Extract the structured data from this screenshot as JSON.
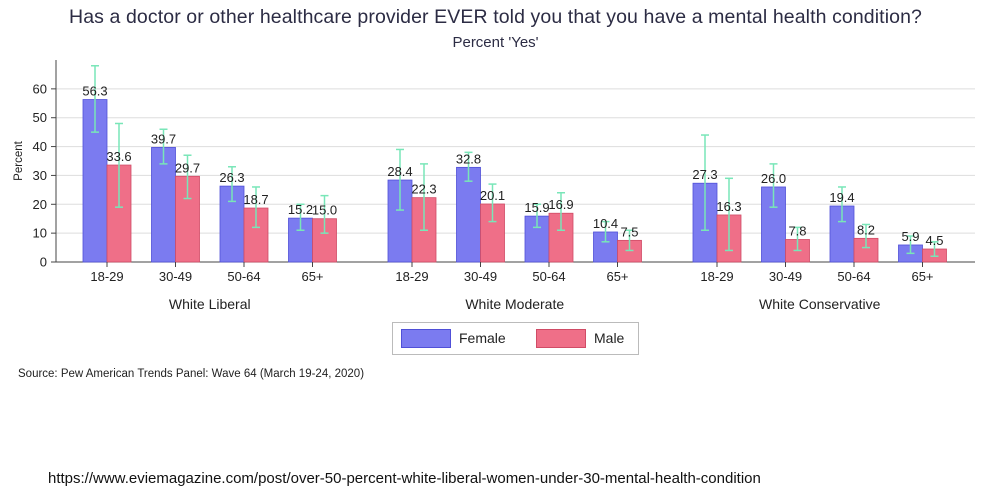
{
  "title": "Has a doctor or other healthcare provider EVER told you that you have a mental health condition?",
  "subtitle": "Percent 'Yes'",
  "source": "Source: Pew American Trends Panel: Wave 64 (March 19-24, 2020)",
  "url": "https://www.eviemagazine.com/post/over-50-percent-white-liberal-women-under-30-mental-health-condition",
  "colors": {
    "female": "#7b7bf0",
    "female_edge": "#5050d8",
    "male": "#ef6f88",
    "male_edge": "#d04c66",
    "error_bar": "#79e6b8",
    "grid": "#dddddd"
  },
  "legend": {
    "female": "Female",
    "male": "Male"
  },
  "chart_data": {
    "type": "bar",
    "ylabel": "Percent",
    "xlabel": "",
    "ylim": [
      0,
      70
    ],
    "yticks": [
      0,
      10,
      20,
      30,
      40,
      50,
      60
    ],
    "grid": true,
    "legend_position": "bottom",
    "groups": [
      {
        "name": "White Liberal",
        "categories": [
          "18-29",
          "30-49",
          "50-64",
          "65+"
        ],
        "female": [
          56.3,
          39.7,
          26.3,
          15.2
        ],
        "female_ci": [
          [
            45,
            68
          ],
          [
            34,
            46
          ],
          [
            21,
            33
          ],
          [
            11,
            20
          ]
        ],
        "male": [
          33.6,
          29.7,
          18.7,
          15.0
        ],
        "male_ci": [
          [
            19,
            48
          ],
          [
            22,
            37
          ],
          [
            12,
            26
          ],
          [
            10,
            23
          ]
        ]
      },
      {
        "name": "White Moderate",
        "categories": [
          "18-29",
          "30-49",
          "50-64",
          "65+"
        ],
        "female": [
          28.4,
          32.8,
          15.9,
          10.4
        ],
        "female_ci": [
          [
            18,
            39
          ],
          [
            28,
            38
          ],
          [
            12,
            20
          ],
          [
            7,
            14
          ]
        ],
        "male": [
          22.3,
          20.1,
          16.9,
          7.5
        ],
        "male_ci": [
          [
            11,
            34
          ],
          [
            14,
            27
          ],
          [
            11,
            24
          ],
          [
            4,
            11
          ]
        ]
      },
      {
        "name": "White Conservative",
        "categories": [
          "18-29",
          "30-49",
          "50-64",
          "65+"
        ],
        "female": [
          27.3,
          26.0,
          19.4,
          5.9
        ],
        "female_ci": [
          [
            11,
            44
          ],
          [
            19,
            34
          ],
          [
            14,
            26
          ],
          [
            3,
            9
          ]
        ],
        "male": [
          16.3,
          7.8,
          8.2,
          4.5
        ],
        "male_ci": [
          [
            4,
            29
          ],
          [
            4,
            12
          ],
          [
            5,
            13
          ],
          [
            2,
            7
          ]
        ]
      }
    ]
  }
}
